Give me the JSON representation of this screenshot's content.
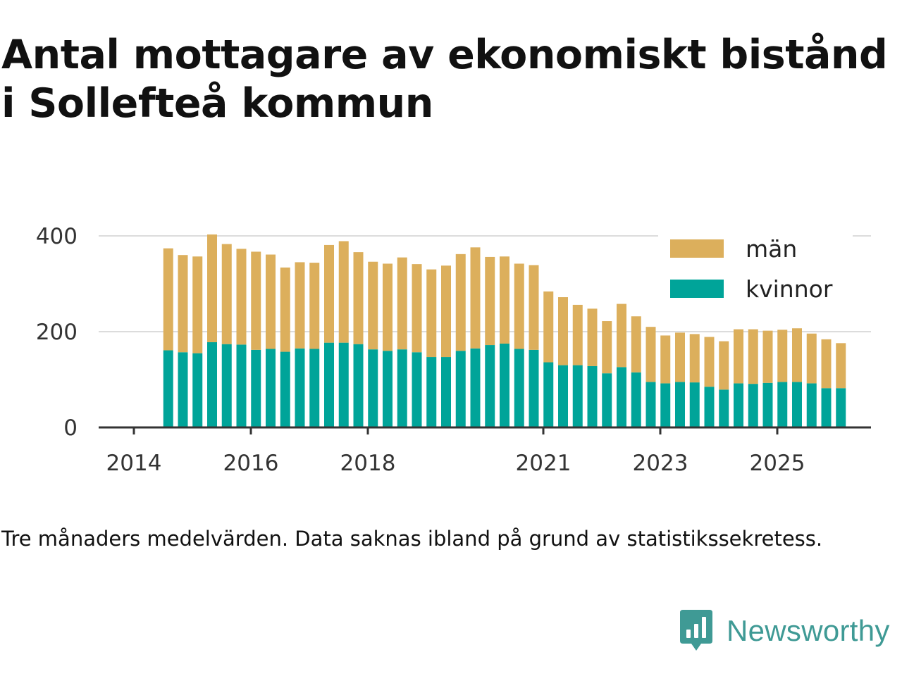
{
  "title": "Antal mottagare av ekonomiskt bistånd i Sollefteå kommun",
  "note": "Tre månaders medelvärden. Data saknas ibland på grund av statistikssekretess.",
  "brand": {
    "name": "Newsworthy",
    "icon": "newsworthy-logo-icon",
    "color": "#3f9a95"
  },
  "colors": {
    "men": "#dcaf5c",
    "women": "#00a499",
    "grid": "#dcdcdc",
    "axis": "#333333"
  },
  "chart_data": {
    "type": "bar",
    "stacked": true,
    "ylim": [
      0,
      400
    ],
    "yticks": [
      "0",
      "200",
      "400"
    ],
    "xtick_labels": [
      "2014",
      "2016",
      "2018",
      "2021",
      "2023",
      "2025"
    ],
    "xtick_years": [
      2014,
      2016,
      2018,
      2021,
      2023,
      2025
    ],
    "legend": [
      "män",
      "kvinnor"
    ],
    "legend_position": "top-right",
    "grid": true,
    "x": [
      2014.25,
      2014.5,
      2014.75,
      2015.0,
      2015.25,
      2015.5,
      2015.75,
      2016.0,
      2016.25,
      2016.5,
      2016.75,
      2017.0,
      2017.25,
      2017.5,
      2017.75,
      2018.0,
      2018.25,
      2018.5,
      2018.75,
      2019.0,
      2019.25,
      2019.5,
      2019.75,
      2020.0,
      2020.25,
      2020.5,
      2020.75,
      2021.0,
      2021.25,
      2021.5,
      2021.75,
      2022.0,
      2022.25,
      2022.5,
      2022.75,
      2023.0,
      2023.25,
      2023.5,
      2023.75,
      2024.0,
      2024.25,
      2024.5,
      2024.75,
      2025.0,
      2025.25,
      2025.5,
      2025.75
    ],
    "series": [
      {
        "name": "kvinnor",
        "values": [
          161,
          157,
          155,
          178,
          174,
          173,
          162,
          164,
          158,
          165,
          164,
          177,
          177,
          174,
          163,
          160,
          163,
          157,
          147,
          147,
          160,
          165,
          172,
          175,
          164,
          162,
          136,
          130,
          130,
          128,
          113,
          126,
          115,
          95,
          92,
          95,
          94,
          85,
          79,
          92,
          91,
          93,
          95,
          95,
          92,
          82,
          82
        ]
      },
      {
        "name": "män",
        "values": [
          213,
          203,
          202,
          225,
          209,
          200,
          205,
          197,
          176,
          180,
          180,
          204,
          212,
          192,
          183,
          182,
          192,
          184,
          183,
          191,
          202,
          211,
          184,
          182,
          178,
          177,
          148,
          142,
          126,
          120,
          109,
          132,
          117,
          115,
          100,
          103,
          101,
          104,
          101,
          113,
          114,
          109,
          109,
          112,
          104,
          102,
          94
        ]
      }
    ]
  }
}
